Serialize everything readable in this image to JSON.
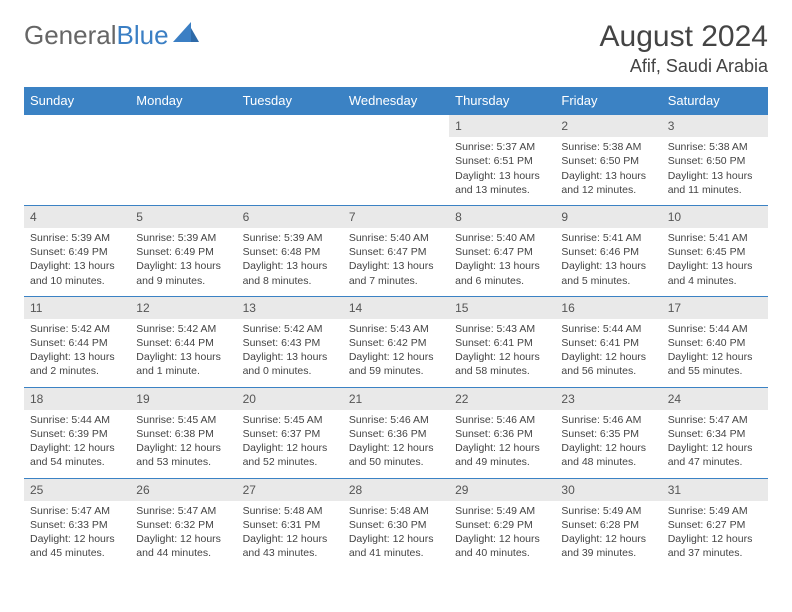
{
  "brand": {
    "part1": "General",
    "part2": "Blue"
  },
  "title": "August 2024",
  "subtitle": "Afif, Saudi Arabia",
  "colors": {
    "header_bg": "#3b82c4",
    "header_text": "#ffffff",
    "daynum_bg": "#e9e9e9",
    "logo_gray": "#666666",
    "logo_blue": "#3b7fc4"
  },
  "day_headers": [
    "Sunday",
    "Monday",
    "Tuesday",
    "Wednesday",
    "Thursday",
    "Friday",
    "Saturday"
  ],
  "weeks": [
    [
      null,
      null,
      null,
      null,
      {
        "n": "1",
        "sr": "Sunrise: 5:37 AM",
        "ss": "Sunset: 6:51 PM",
        "d1": "Daylight: 13 hours",
        "d2": "and 13 minutes."
      },
      {
        "n": "2",
        "sr": "Sunrise: 5:38 AM",
        "ss": "Sunset: 6:50 PM",
        "d1": "Daylight: 13 hours",
        "d2": "and 12 minutes."
      },
      {
        "n": "3",
        "sr": "Sunrise: 5:38 AM",
        "ss": "Sunset: 6:50 PM",
        "d1": "Daylight: 13 hours",
        "d2": "and 11 minutes."
      }
    ],
    [
      {
        "n": "4",
        "sr": "Sunrise: 5:39 AM",
        "ss": "Sunset: 6:49 PM",
        "d1": "Daylight: 13 hours",
        "d2": "and 10 minutes."
      },
      {
        "n": "5",
        "sr": "Sunrise: 5:39 AM",
        "ss": "Sunset: 6:49 PM",
        "d1": "Daylight: 13 hours",
        "d2": "and 9 minutes."
      },
      {
        "n": "6",
        "sr": "Sunrise: 5:39 AM",
        "ss": "Sunset: 6:48 PM",
        "d1": "Daylight: 13 hours",
        "d2": "and 8 minutes."
      },
      {
        "n": "7",
        "sr": "Sunrise: 5:40 AM",
        "ss": "Sunset: 6:47 PM",
        "d1": "Daylight: 13 hours",
        "d2": "and 7 minutes."
      },
      {
        "n": "8",
        "sr": "Sunrise: 5:40 AM",
        "ss": "Sunset: 6:47 PM",
        "d1": "Daylight: 13 hours",
        "d2": "and 6 minutes."
      },
      {
        "n": "9",
        "sr": "Sunrise: 5:41 AM",
        "ss": "Sunset: 6:46 PM",
        "d1": "Daylight: 13 hours",
        "d2": "and 5 minutes."
      },
      {
        "n": "10",
        "sr": "Sunrise: 5:41 AM",
        "ss": "Sunset: 6:45 PM",
        "d1": "Daylight: 13 hours",
        "d2": "and 4 minutes."
      }
    ],
    [
      {
        "n": "11",
        "sr": "Sunrise: 5:42 AM",
        "ss": "Sunset: 6:44 PM",
        "d1": "Daylight: 13 hours",
        "d2": "and 2 minutes."
      },
      {
        "n": "12",
        "sr": "Sunrise: 5:42 AM",
        "ss": "Sunset: 6:44 PM",
        "d1": "Daylight: 13 hours",
        "d2": "and 1 minute."
      },
      {
        "n": "13",
        "sr": "Sunrise: 5:42 AM",
        "ss": "Sunset: 6:43 PM",
        "d1": "Daylight: 13 hours",
        "d2": "and 0 minutes."
      },
      {
        "n": "14",
        "sr": "Sunrise: 5:43 AM",
        "ss": "Sunset: 6:42 PM",
        "d1": "Daylight: 12 hours",
        "d2": "and 59 minutes."
      },
      {
        "n": "15",
        "sr": "Sunrise: 5:43 AM",
        "ss": "Sunset: 6:41 PM",
        "d1": "Daylight: 12 hours",
        "d2": "and 58 minutes."
      },
      {
        "n": "16",
        "sr": "Sunrise: 5:44 AM",
        "ss": "Sunset: 6:41 PM",
        "d1": "Daylight: 12 hours",
        "d2": "and 56 minutes."
      },
      {
        "n": "17",
        "sr": "Sunrise: 5:44 AM",
        "ss": "Sunset: 6:40 PM",
        "d1": "Daylight: 12 hours",
        "d2": "and 55 minutes."
      }
    ],
    [
      {
        "n": "18",
        "sr": "Sunrise: 5:44 AM",
        "ss": "Sunset: 6:39 PM",
        "d1": "Daylight: 12 hours",
        "d2": "and 54 minutes."
      },
      {
        "n": "19",
        "sr": "Sunrise: 5:45 AM",
        "ss": "Sunset: 6:38 PM",
        "d1": "Daylight: 12 hours",
        "d2": "and 53 minutes."
      },
      {
        "n": "20",
        "sr": "Sunrise: 5:45 AM",
        "ss": "Sunset: 6:37 PM",
        "d1": "Daylight: 12 hours",
        "d2": "and 52 minutes."
      },
      {
        "n": "21",
        "sr": "Sunrise: 5:46 AM",
        "ss": "Sunset: 6:36 PM",
        "d1": "Daylight: 12 hours",
        "d2": "and 50 minutes."
      },
      {
        "n": "22",
        "sr": "Sunrise: 5:46 AM",
        "ss": "Sunset: 6:36 PM",
        "d1": "Daylight: 12 hours",
        "d2": "and 49 minutes."
      },
      {
        "n": "23",
        "sr": "Sunrise: 5:46 AM",
        "ss": "Sunset: 6:35 PM",
        "d1": "Daylight: 12 hours",
        "d2": "and 48 minutes."
      },
      {
        "n": "24",
        "sr": "Sunrise: 5:47 AM",
        "ss": "Sunset: 6:34 PM",
        "d1": "Daylight: 12 hours",
        "d2": "and 47 minutes."
      }
    ],
    [
      {
        "n": "25",
        "sr": "Sunrise: 5:47 AM",
        "ss": "Sunset: 6:33 PM",
        "d1": "Daylight: 12 hours",
        "d2": "and 45 minutes."
      },
      {
        "n": "26",
        "sr": "Sunrise: 5:47 AM",
        "ss": "Sunset: 6:32 PM",
        "d1": "Daylight: 12 hours",
        "d2": "and 44 minutes."
      },
      {
        "n": "27",
        "sr": "Sunrise: 5:48 AM",
        "ss": "Sunset: 6:31 PM",
        "d1": "Daylight: 12 hours",
        "d2": "and 43 minutes."
      },
      {
        "n": "28",
        "sr": "Sunrise: 5:48 AM",
        "ss": "Sunset: 6:30 PM",
        "d1": "Daylight: 12 hours",
        "d2": "and 41 minutes."
      },
      {
        "n": "29",
        "sr": "Sunrise: 5:49 AM",
        "ss": "Sunset: 6:29 PM",
        "d1": "Daylight: 12 hours",
        "d2": "and 40 minutes."
      },
      {
        "n": "30",
        "sr": "Sunrise: 5:49 AM",
        "ss": "Sunset: 6:28 PM",
        "d1": "Daylight: 12 hours",
        "d2": "and 39 minutes."
      },
      {
        "n": "31",
        "sr": "Sunrise: 5:49 AM",
        "ss": "Sunset: 6:27 PM",
        "d1": "Daylight: 12 hours",
        "d2": "and 37 minutes."
      }
    ]
  ]
}
